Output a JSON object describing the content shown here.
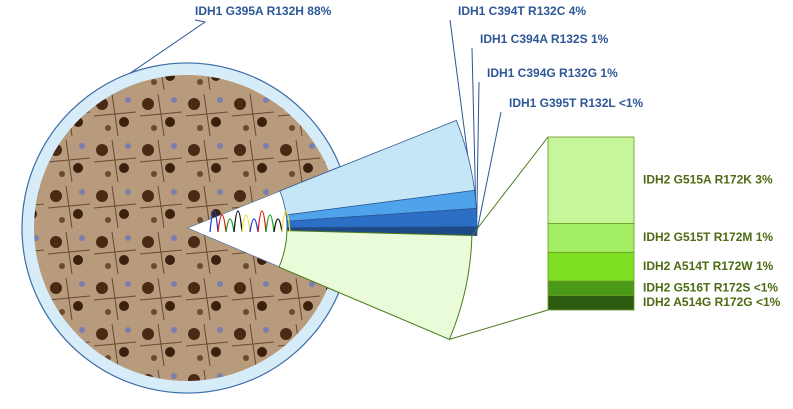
{
  "chart_data": [
    {
      "type": "pie",
      "categories": [
        "IDH1 G395A R132H",
        "IDH1 C394T R132C",
        "IDH1 C394A R132S",
        "IDH1 C394G R132G",
        "IDH1 G395T R132L"
      ],
      "values": [
        88,
        4,
        1,
        1,
        0.5
      ],
      "value_labels": [
        "88%",
        "4%",
        "1%",
        "1%",
        "<1%"
      ],
      "colors": [
        "#9c7350",
        "#c4e6f6",
        "#4fa3ea",
        "#2b6fc7",
        "#1d4a86"
      ],
      "label_color": "#2d5796"
    },
    {
      "type": "stacked-bar",
      "categories": [
        "IDH2 G515A R172K",
        "IDH2 G515T R172M",
        "IDH2 A514T R172W",
        "IDH2 G516T R172S",
        "IDH2 A514G R172G"
      ],
      "values": [
        3,
        1,
        1,
        0.5,
        0.5
      ],
      "value_labels": [
        "3%",
        "1%",
        "1%",
        "<1%",
        "<1%"
      ],
      "colors": [
        "#c6f59a",
        "#a3ee62",
        "#7fe023",
        "#4b9918",
        "#2d5b0f"
      ],
      "wedge_color": "#e9fbd8",
      "label_color": "#4c6b12"
    }
  ]
}
